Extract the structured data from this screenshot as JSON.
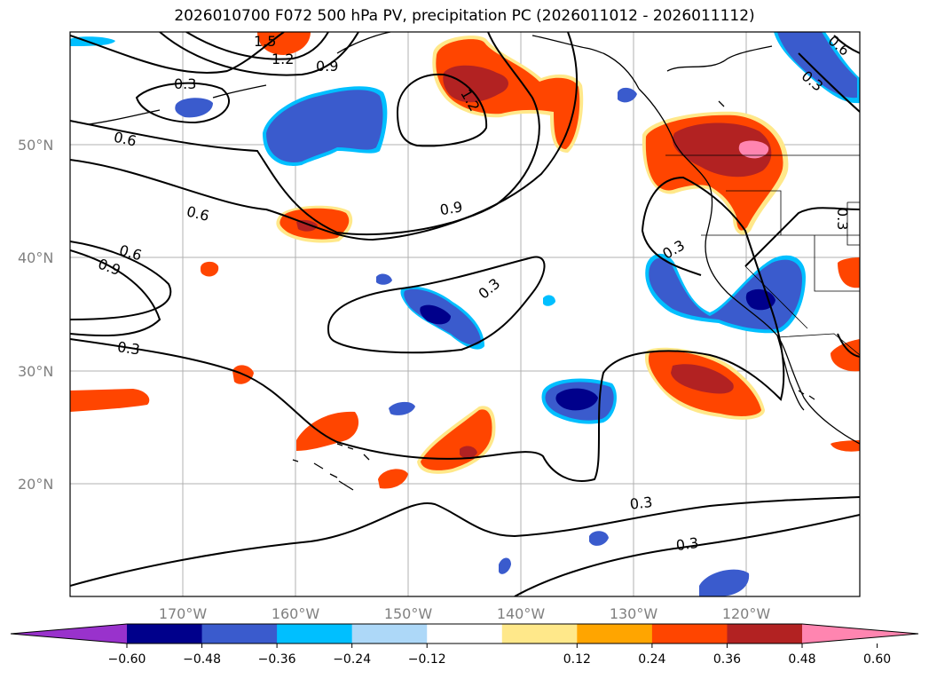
{
  "title": "2026010700 F072 500 hPa PV, precipitation PC (2026011012 - 2026011112)",
  "lat_labels": [
    "50°N",
    "40°N",
    "30°N",
    "20°N"
  ],
  "lon_labels": [
    "170°W",
    "160°W",
    "150°W",
    "140°W",
    "130°W",
    "120°W"
  ],
  "contour_labels": [
    "1.5",
    "1.2",
    "0.9",
    "0.3",
    "1.2",
    "0.6",
    "0.6",
    "0.9",
    "0.6",
    "0.9",
    "0.3",
    "0.3",
    "0.3",
    "0.3",
    "0.3",
    "0.3",
    "0.6",
    "0.3"
  ],
  "colorbar": {
    "ticks": [
      "−0.60",
      "−0.48",
      "−0.36",
      "−0.24",
      "−0.12",
      "0.12",
      "0.24",
      "0.36",
      "0.48",
      "0.60"
    ],
    "colors": [
      "#9932cc",
      "#00008b",
      "#3a5bcd",
      "#00bfff",
      "#add8f8",
      "#ffffff",
      "#ffe88a",
      "#ffa500",
      "#ff4500",
      "#b22222",
      "#ff85b0"
    ]
  },
  "colors": {
    "pos_low": "#ff4500",
    "pos_mid": "#b22222",
    "pos_high": "#ff85b0",
    "neg_low": "#3a5bcd",
    "neg_mid": "#00008b",
    "neg_edge": "#00bfff",
    "pos_edge": "#ffe88a"
  }
}
